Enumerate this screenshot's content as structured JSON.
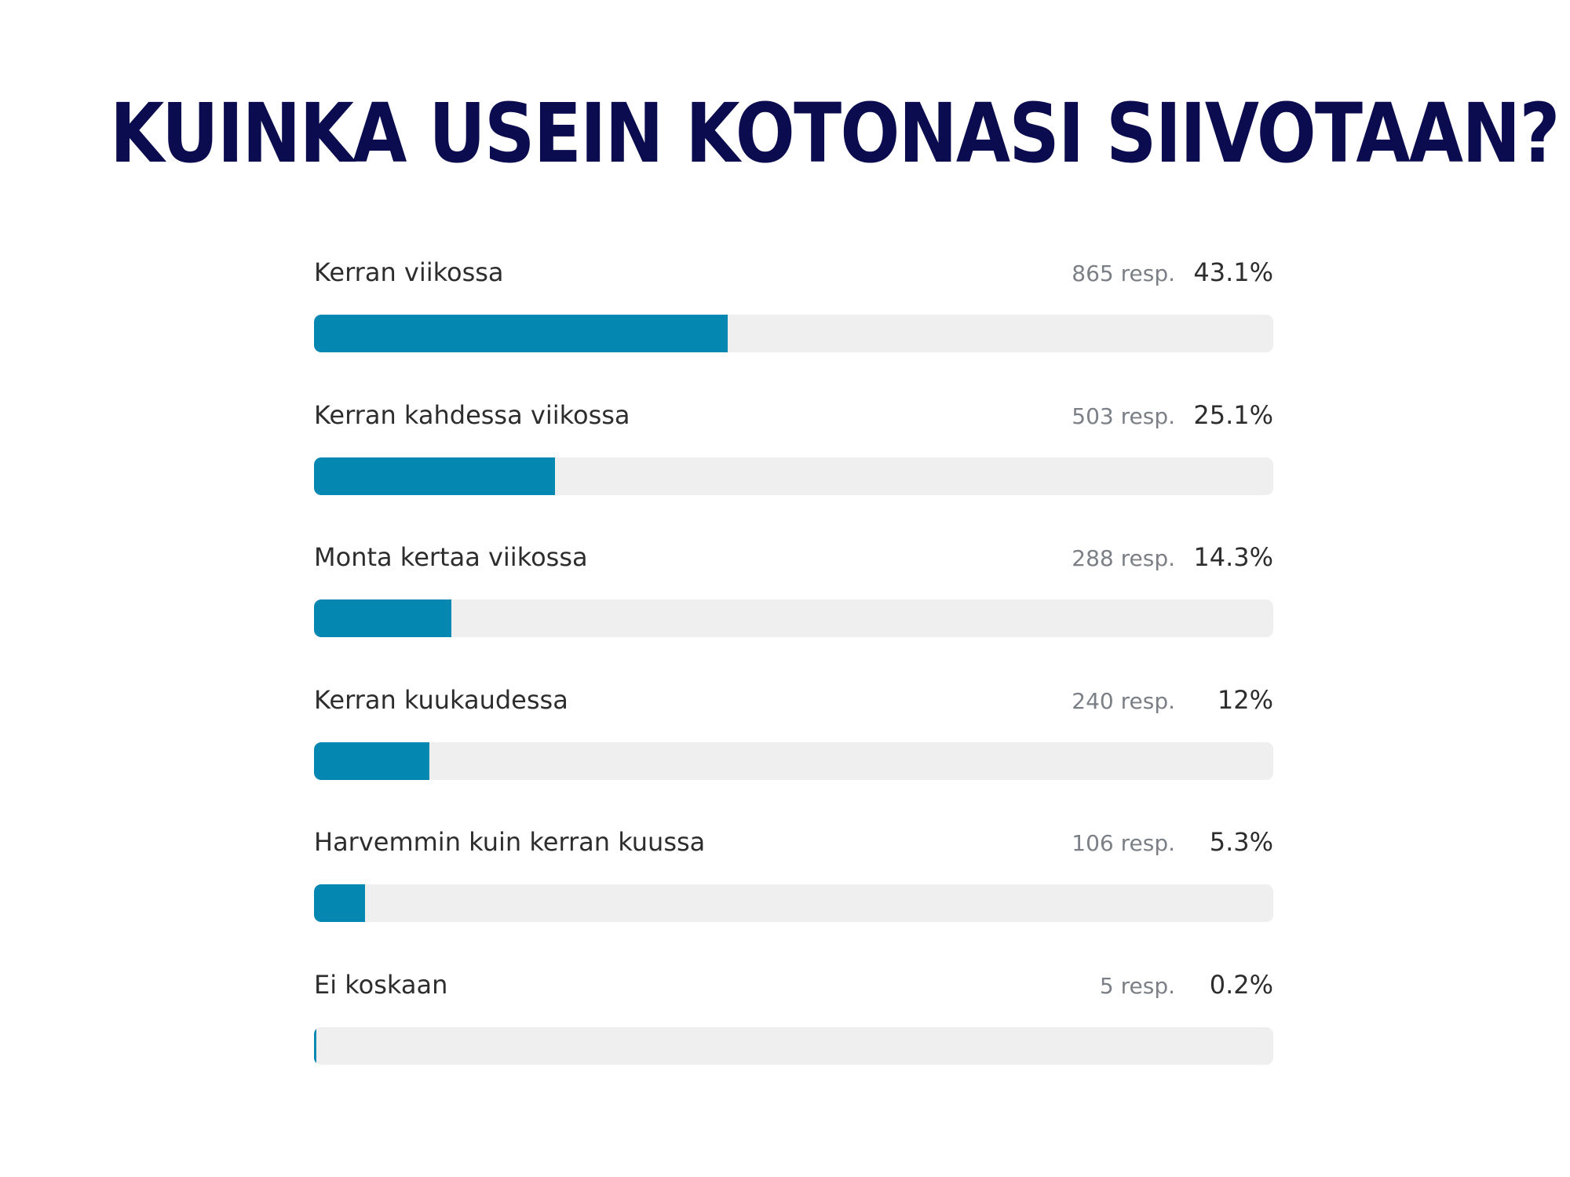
{
  "title": "KUINKA USEIN KOTONASI SIIVOTAAN?",
  "colors": {
    "title": "#0b0b4f",
    "bar_fill": "#0487b1",
    "bar_track": "#efefef"
  },
  "chart_data": {
    "type": "bar",
    "orientation": "horizontal",
    "title": "KUINKA USEIN KOTONASI SIIVOTAAN?",
    "xlim": [
      0,
      100
    ],
    "grid": false,
    "rows": [
      {
        "label": "Kerran viikossa",
        "responses": "865 resp.",
        "percent_label": "43.1%",
        "value": 43.1
      },
      {
        "label": "Kerran kahdessa viikossa",
        "responses": "503 resp.",
        "percent_label": "25.1%",
        "value": 25.1
      },
      {
        "label": "Monta kertaa viikossa",
        "responses": "288 resp.",
        "percent_label": "14.3%",
        "value": 14.3
      },
      {
        "label": "Kerran kuukaudessa",
        "responses": "240 resp.",
        "percent_label": "12%",
        "value": 12
      },
      {
        "label": "Harvemmin kuin kerran kuussa",
        "responses": "106 resp.",
        "percent_label": "5.3%",
        "value": 5.3
      },
      {
        "label": "Ei koskaan",
        "responses": "5 resp.",
        "percent_label": "0.2%",
        "value": 0.2
      }
    ]
  }
}
